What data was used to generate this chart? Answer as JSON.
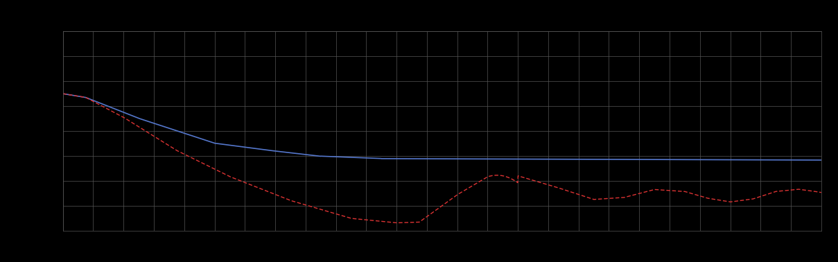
{
  "background_color": "#000000",
  "plot_bg_color": "#000000",
  "grid_color": "#555555",
  "blue_line_color": "#5577CC",
  "red_line_color": "#DD3333",
  "blue_linewidth": 1.2,
  "red_linewidth": 1.0,
  "figsize": [
    12.09,
    3.78
  ],
  "dpi": 100,
  "xlim": [
    0,
    100
  ],
  "ylim": [
    0,
    8
  ],
  "n_x_gridlines": 25,
  "n_y_gridlines": 8
}
